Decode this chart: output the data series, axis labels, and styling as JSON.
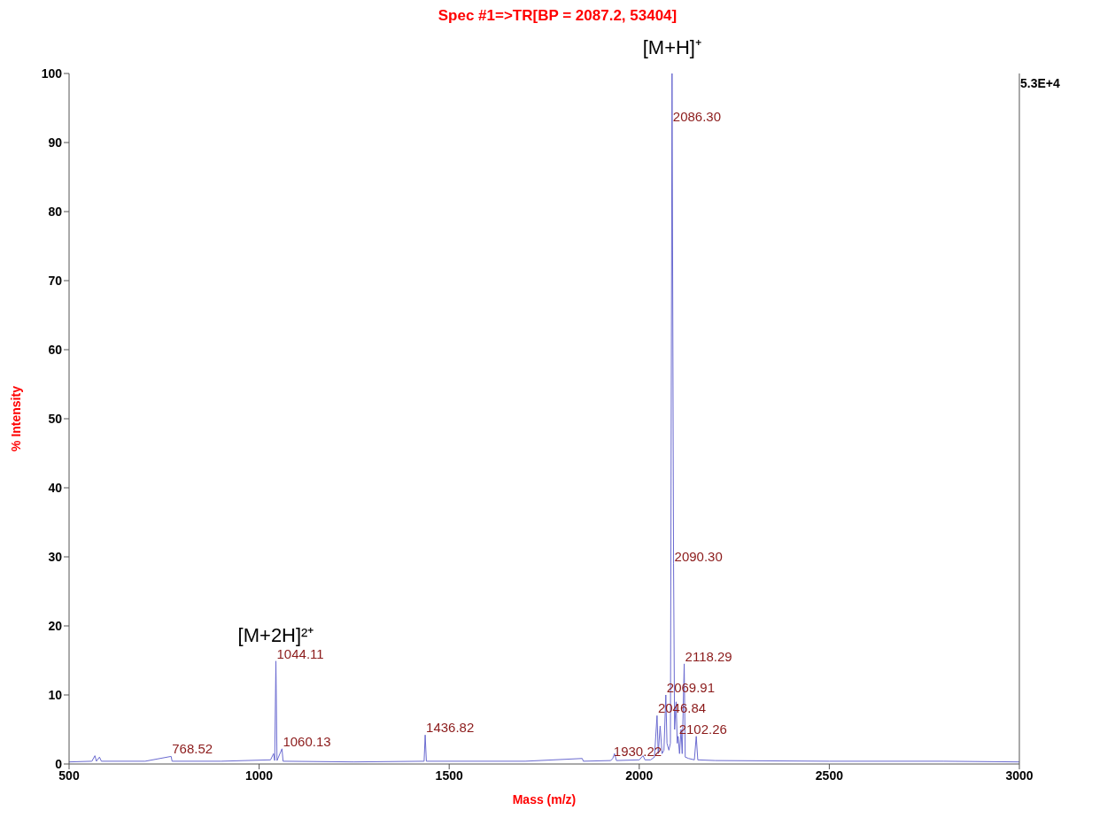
{
  "chart_data": {
    "type": "line",
    "title": "Spec #1=>TR[BP = 2087.2, 53404]",
    "xlabel": "Mass (m/z)",
    "ylabel": "% Intensity",
    "x": [
      500,
      560,
      568,
      572,
      580,
      585,
      700,
      768.52,
      771,
      900,
      1030,
      1038,
      1041,
      1044.11,
      1047,
      1060.13,
      1063,
      1250,
      1434,
      1436.82,
      1440,
      1700,
      1850,
      1853,
      1925,
      1930.22,
      1935,
      1940,
      2000,
      2010,
      2015,
      2030,
      2040,
      2046.84,
      2050,
      2055,
      2060,
      2065,
      2069.91,
      2073,
      2078,
      2082,
      2086.3,
      2088,
      2090.3,
      2093,
      2097,
      2100,
      2102.26,
      2106,
      2110,
      2113,
      2118.29,
      2121,
      2130,
      2145,
      2150,
      2154,
      2200,
      2500,
      2800,
      3000
    ],
    "series": [
      {
        "color": "#6a6ad0",
        "values": [
          0.3,
          0.4,
          1.2,
          0.4,
          1.0,
          0.4,
          0.4,
          1.1,
          0.4,
          0.4,
          0.6,
          1.5,
          0.5,
          14.9,
          0.5,
          2.2,
          0.4,
          0.3,
          0.4,
          4.2,
          0.4,
          0.4,
          0.8,
          0.4,
          0.5,
          0.8,
          1.5,
          0.5,
          0.6,
          1.2,
          0.6,
          0.6,
          1.0,
          7.0,
          1.5,
          5.5,
          1.5,
          2.0,
          10,
          3,
          2,
          3,
          100,
          70,
          29,
          5,
          9,
          3,
          4.0,
          1.5,
          5,
          1.5,
          14.5,
          1.0,
          0.8,
          0.6,
          4.0,
          0.6,
          0.5,
          0.4,
          0.4,
          0.3
        ]
      }
    ],
    "xlim": [
      500,
      3000
    ],
    "xticks": [
      500,
      1000,
      1500,
      2000,
      2500,
      3000
    ],
    "ylim": [
      0,
      100
    ],
    "yticks": [
      0,
      10,
      20,
      30,
      40,
      50,
      60,
      70,
      80,
      90,
      100
    ],
    "grid": false,
    "legend": false,
    "marker": "none",
    "line_style": "solid",
    "annotations": [
      "5.3E+4",
      {
        "text": "768.52",
        "x": 768.52,
        "y": 1.1
      },
      {
        "text": "1044.11",
        "x": 1044.11,
        "y": 14.9
      },
      {
        "text": "[M+2H]²⁺",
        "x": 1044.11,
        "y": 14.9
      },
      {
        "text": "1060.13",
        "x": 1060.13,
        "y": 2.2
      },
      {
        "text": "1436.82",
        "x": 1436.82,
        "y": 4.2
      },
      {
        "text": "1930.22",
        "x": 1930.22,
        "y": 0.8
      },
      {
        "text": "2046.84",
        "x": 2046.84,
        "y": 7.0
      },
      {
        "text": "2069.91",
        "x": 2069.91,
        "y": 10
      },
      {
        "text": "2086.30",
        "x": 2086.3,
        "y": 100
      },
      {
        "text": "[M+H]⁺",
        "x": 2086.3,
        "y": 100
      },
      {
        "text": "2090.30",
        "x": 2090.3,
        "y": 29
      },
      {
        "text": "2102.26",
        "x": 2102.26,
        "y": 4.0
      },
      {
        "text": "2118.29",
        "x": 2118.29,
        "y": 14.5
      }
    ]
  }
}
